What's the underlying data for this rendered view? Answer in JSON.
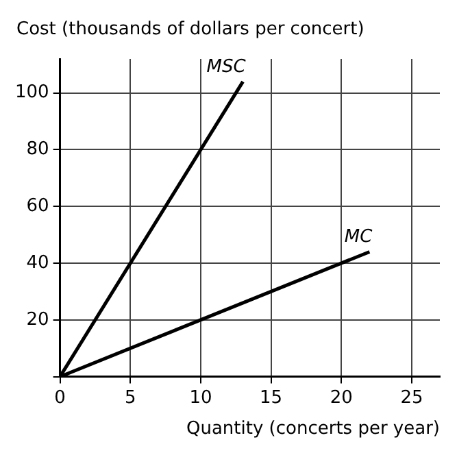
{
  "chart_data": {
    "type": "line",
    "xlabel": "Quantity (concerts per year)",
    "ylabel": "Cost (thousands of dollars per concert)",
    "series": [
      {
        "name": "MSC",
        "color": "#000000",
        "x": [
          0,
          13
        ],
        "values": [
          0,
          104
        ]
      },
      {
        "name": "MC",
        "color": "#000000",
        "x": [
          0,
          22
        ],
        "values": [
          0,
          44
        ]
      }
    ],
    "xlim": [
      0,
      27
    ],
    "ylim": [
      0,
      112
    ],
    "xticks": [
      0,
      5,
      10,
      15,
      20,
      25
    ],
    "yticks": [
      {
        "value": 0,
        "label": null
      },
      20,
      40,
      60,
      80,
      100
    ],
    "grid": true,
    "legend": false,
    "marker": "none",
    "line_style": "solid"
  }
}
